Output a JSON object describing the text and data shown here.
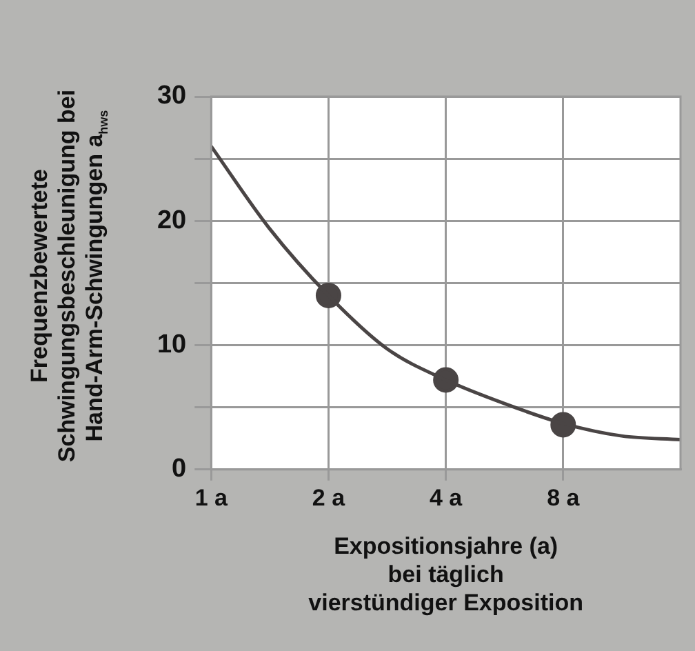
{
  "chart_data": {
    "type": "line",
    "xlabel": "Expositionsjahre (a)\nbei täglich\nvierstündiger Exposition",
    "ylabel": "Frequenzbewertete\nSchwingungsbeschleunigung bei\nHand-Arm-Schwingungen a$_{hws}$",
    "log": "x",
    "xlim": [
      1,
      16
    ],
    "xticks": [
      {
        "value": 1,
        "label": "1 a"
      },
      {
        "value": 2,
        "label": "2 a"
      },
      {
        "value": 4,
        "label": "4 a"
      },
      {
        "value": 8,
        "label": "8 a"
      }
    ],
    "ylim": [
      0,
      30
    ],
    "yticks": [
      0,
      {
        "value": 5,
        "label": null
      },
      10,
      {
        "value": 15,
        "label": null
      },
      20,
      {
        "value": 25,
        "label": null
      },
      30
    ],
    "grid": true,
    "legend": false,
    "series": [
      {
        "marker": "none",
        "color": "#4a4545",
        "x": [
          1,
          1.41,
          2,
          2.83,
          4,
          5.66,
          8,
          11.3,
          16
        ],
        "values": [
          26,
          19.4,
          14,
          9.7,
          7.2,
          5.3,
          3.7,
          2.7,
          2.4
        ]
      },
      {
        "type": "scatter",
        "marker": "circle",
        "color": "#4a4545",
        "x": [
          2,
          4,
          8
        ],
        "values": [
          14,
          7.2,
          3.6
        ]
      }
    ]
  }
}
